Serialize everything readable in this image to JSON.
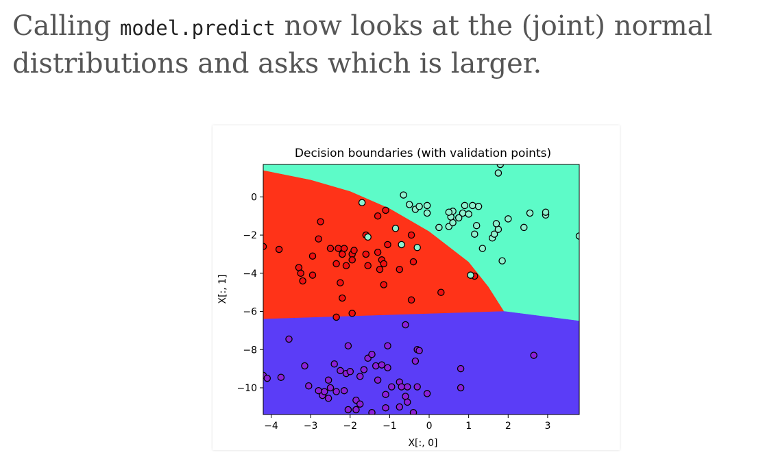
{
  "text": {
    "before_code": "Calling ",
    "code": "model.predict",
    "after_code": " now looks at the (joint) normal distributions and asks which is larger."
  },
  "colors": {
    "region_red": "#ff3318",
    "region_cyan": "#5dfbc8",
    "region_purple": "#5b3df7",
    "point_red": "#ee1010",
    "point_cyan": "#8ef2cf",
    "point_purple": "#8c20d8",
    "point_edge": "#000000"
  },
  "chart_data": {
    "type": "scatter",
    "title": "Decision boundaries (with validation points)",
    "xlabel": "X[:, 0]",
    "ylabel": "X[:, 1]",
    "xlim": [
      -4.2,
      3.8
    ],
    "ylim": [
      -11.4,
      1.7
    ],
    "xticks": [
      -4,
      -3,
      -2,
      -1,
      0,
      1,
      2,
      3
    ],
    "yticks": [
      0,
      -2,
      -4,
      -6,
      -8,
      -10
    ],
    "grid": false,
    "regions": [
      {
        "class": "red",
        "color": "#ff3318",
        "boundary": [
          [
            -4.2,
            1.4
          ],
          [
            -3.0,
            0.9
          ],
          [
            -2.0,
            0.3
          ],
          [
            -1.0,
            -0.6
          ],
          [
            0.0,
            -1.8
          ],
          [
            1.0,
            -3.4
          ],
          [
            1.5,
            -4.7
          ],
          [
            1.9,
            -6.0
          ],
          [
            -4.2,
            -6.4
          ]
        ]
      },
      {
        "class": "cyan",
        "color": "#5dfbc8",
        "boundary": [
          [
            -4.2,
            1.7
          ],
          [
            3.8,
            1.7
          ],
          [
            3.8,
            -6.5
          ],
          [
            1.9,
            -6.0
          ],
          [
            1.5,
            -4.7
          ],
          [
            1.0,
            -3.4
          ],
          [
            0.0,
            -1.8
          ],
          [
            -1.0,
            -0.6
          ],
          [
            -2.0,
            0.3
          ],
          [
            -3.0,
            0.9
          ],
          [
            -4.2,
            1.4
          ]
        ]
      },
      {
        "class": "purple",
        "color": "#5b3df7",
        "boundary": [
          [
            -4.2,
            -6.4
          ],
          [
            1.9,
            -6.0
          ],
          [
            3.8,
            -6.5
          ],
          [
            3.8,
            -11.4
          ],
          [
            -4.2,
            -11.4
          ]
        ]
      }
    ],
    "series": [
      {
        "class": "red",
        "color": "#ee1010",
        "points": [
          [
            -2.75,
            -1.3
          ],
          [
            -2.8,
            -2.2
          ],
          [
            -2.3,
            -2.7
          ],
          [
            -2.15,
            -2.7
          ],
          [
            -2.2,
            -3.0
          ],
          [
            -1.95,
            -3.0
          ],
          [
            -1.95,
            -3.3
          ],
          [
            -1.9,
            -2.8
          ],
          [
            -1.6,
            -2.0
          ],
          [
            -1.55,
            -3.6
          ],
          [
            -1.25,
            -3.8
          ],
          [
            -1.3,
            -2.9
          ],
          [
            -1.2,
            -3.3
          ],
          [
            -1.15,
            -3.5
          ],
          [
            -1.05,
            -2.5
          ],
          [
            -0.75,
            -3.8
          ],
          [
            -0.4,
            -3.4
          ],
          [
            -0.45,
            -2.0
          ],
          [
            -0.45,
            -5.4
          ],
          [
            -1.15,
            -4.6
          ],
          [
            -1.3,
            -1.0
          ],
          [
            -1.1,
            -0.7
          ],
          [
            0.3,
            -5.0
          ],
          [
            1.05,
            -4.1
          ],
          [
            1.15,
            -4.15
          ],
          [
            -3.8,
            -2.75
          ],
          [
            -4.2,
            -2.6
          ],
          [
            -3.3,
            -3.7
          ],
          [
            -3.25,
            -4.0
          ],
          [
            -3.2,
            -4.4
          ],
          [
            -2.95,
            -4.1
          ],
          [
            -2.95,
            -3.1
          ],
          [
            -2.35,
            -3.5
          ],
          [
            -2.25,
            -4.5
          ],
          [
            -2.2,
            -5.3
          ],
          [
            -1.95,
            -6.1
          ],
          [
            -2.35,
            -6.3
          ],
          [
            -2.1,
            -3.6
          ],
          [
            -1.6,
            -3.0
          ],
          [
            -2.5,
            -2.7
          ]
        ]
      },
      {
        "class": "cyan",
        "color": "#8ef2cf",
        "points": [
          [
            -0.65,
            0.1
          ],
          [
            -0.5,
            -0.4
          ],
          [
            -0.35,
            -0.65
          ],
          [
            -0.05,
            -0.45
          ],
          [
            -0.05,
            -0.85
          ],
          [
            -0.85,
            -1.65
          ],
          [
            -1.55,
            -2.1
          ],
          [
            -0.3,
            -2.65
          ],
          [
            0.25,
            -1.6
          ],
          [
            0.5,
            -1.55
          ],
          [
            0.6,
            -1.35
          ],
          [
            0.55,
            -1.05
          ],
          [
            0.6,
            -0.75
          ],
          [
            0.85,
            -0.85
          ],
          [
            0.9,
            -0.45
          ],
          [
            0.75,
            -1.1
          ],
          [
            1.1,
            -0.45
          ],
          [
            1.25,
            -0.5
          ],
          [
            1.0,
            -0.9
          ],
          [
            1.2,
            -1.5
          ],
          [
            1.15,
            -1.95
          ],
          [
            1.35,
            -2.7
          ],
          [
            1.6,
            -2.15
          ],
          [
            1.65,
            -1.95
          ],
          [
            1.75,
            -1.7
          ],
          [
            1.7,
            -1.4
          ],
          [
            1.85,
            -3.35
          ],
          [
            2.0,
            -1.15
          ],
          [
            2.4,
            -1.6
          ],
          [
            2.55,
            -0.85
          ],
          [
            2.95,
            -0.95
          ],
          [
            2.95,
            -0.8
          ],
          [
            3.8,
            -2.05
          ],
          [
            1.75,
            1.25
          ],
          [
            1.8,
            1.7
          ],
          [
            1.05,
            -4.1
          ],
          [
            -0.7,
            -2.5
          ],
          [
            -1.7,
            -0.3
          ],
          [
            -0.25,
            -0.5
          ],
          [
            0.5,
            -0.8
          ]
        ]
      },
      {
        "class": "purple",
        "color": "#8c20d8",
        "points": [
          [
            -3.55,
            -7.45
          ],
          [
            -4.2,
            -9.35
          ],
          [
            -4.1,
            -9.5
          ],
          [
            -3.75,
            -9.45
          ],
          [
            -3.15,
            -8.85
          ],
          [
            -3.05,
            -9.9
          ],
          [
            -2.8,
            -10.15
          ],
          [
            -2.7,
            -10.4
          ],
          [
            -2.65,
            -10.2
          ],
          [
            -2.55,
            -10.55
          ],
          [
            -2.5,
            -10.0
          ],
          [
            -2.55,
            -9.6
          ],
          [
            -2.35,
            -10.2
          ],
          [
            -2.15,
            -10.15
          ],
          [
            -2.4,
            -8.75
          ],
          [
            -2.25,
            -9.1
          ],
          [
            -2.1,
            -9.25
          ],
          [
            -2.0,
            -9.15
          ],
          [
            -2.05,
            -7.8
          ],
          [
            -1.75,
            -9.4
          ],
          [
            -1.65,
            -9.05
          ],
          [
            -1.55,
            -8.45
          ],
          [
            -1.45,
            -8.25
          ],
          [
            -1.35,
            -8.85
          ],
          [
            -1.2,
            -8.8
          ],
          [
            -1.05,
            -7.8
          ],
          [
            -1.05,
            -8.95
          ],
          [
            -1.3,
            -9.6
          ],
          [
            -1.1,
            -10.35
          ],
          [
            -0.95,
            -9.95
          ],
          [
            -0.75,
            -9.7
          ],
          [
            -0.7,
            -9.95
          ],
          [
            -0.55,
            -9.95
          ],
          [
            -0.3,
            -9.95
          ],
          [
            -0.6,
            -10.45
          ],
          [
            -0.55,
            -10.75
          ],
          [
            -0.75,
            -11.0
          ],
          [
            -1.1,
            -11.05
          ],
          [
            -1.45,
            -11.3
          ],
          [
            -1.85,
            -10.65
          ],
          [
            -1.75,
            -10.85
          ],
          [
            -1.85,
            -11.15
          ],
          [
            -2.05,
            -11.15
          ],
          [
            -0.35,
            -8.6
          ],
          [
            -0.3,
            -8.0
          ],
          [
            -0.25,
            -8.05
          ],
          [
            -0.05,
            -10.3
          ],
          [
            0.8,
            -9.0
          ],
          [
            0.8,
            -10.0
          ],
          [
            2.65,
            -8.3
          ],
          [
            -0.6,
            -6.7
          ],
          [
            -0.4,
            -11.3
          ]
        ]
      }
    ]
  }
}
